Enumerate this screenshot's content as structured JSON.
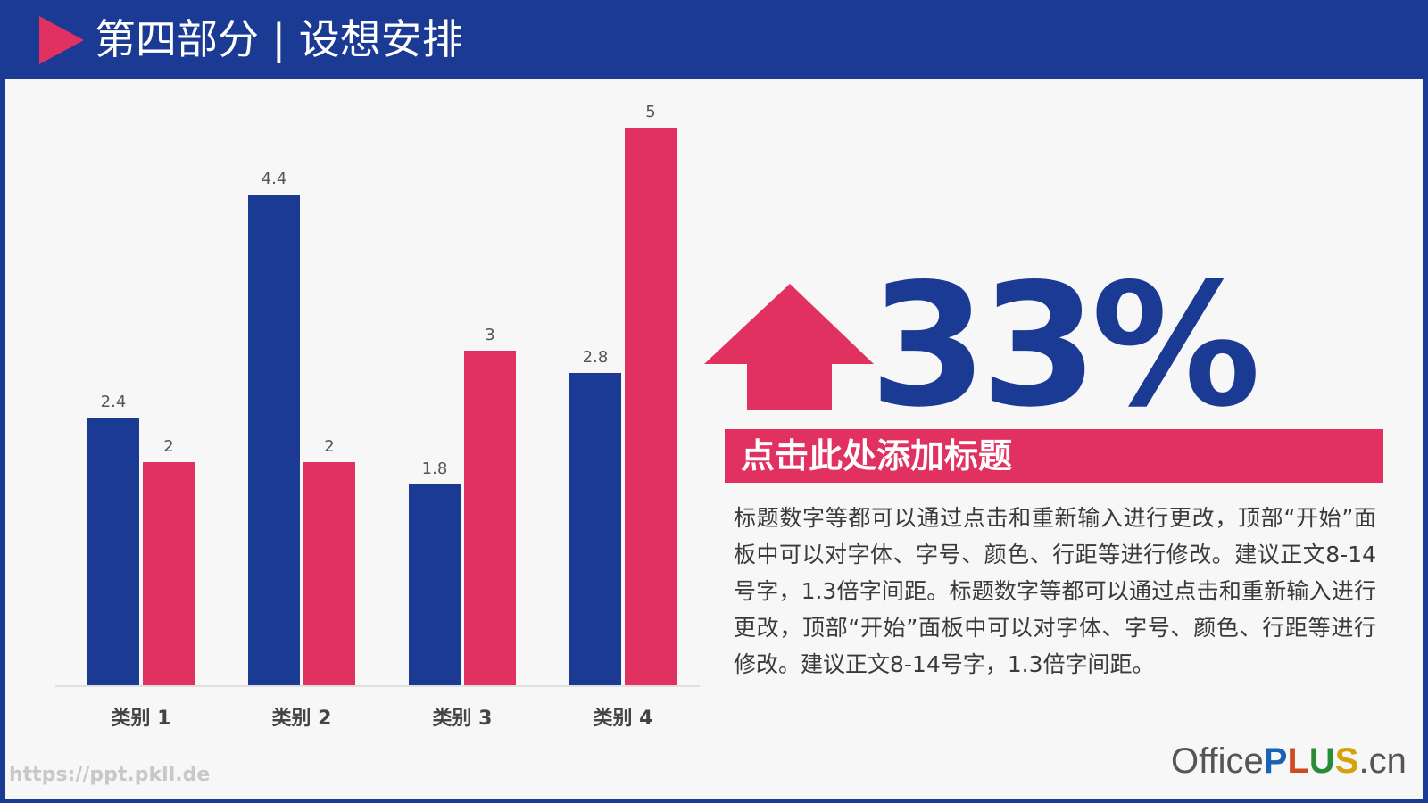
{
  "header": {
    "title": "第四部分 | 设想安排"
  },
  "colors": {
    "series_a": "#1b3a94",
    "series_b": "#e03161",
    "header_bg": "#1b3a94",
    "accent": "#e03161"
  },
  "chart_data": {
    "type": "bar",
    "categories": [
      "类别 1",
      "类别 2",
      "类别 3",
      "类别 4"
    ],
    "series": [
      {
        "values": [
          2.4,
          4.4,
          1.8,
          2.8
        ]
      },
      {
        "values": [
          2,
          2,
          3,
          5
        ]
      }
    ],
    "ylim": [
      0,
      5
    ],
    "grid": false,
    "legend": "none",
    "data_labels": true
  },
  "highlight": {
    "percent": "33%",
    "icon": "up-arrow-icon"
  },
  "banner": {
    "title": "点击此处添加标题"
  },
  "body": {
    "text": "标题数字等都可以通过点击和重新输入进行更改，顶部“开始”面板中可以对字体、字号、颜色、行距等进行修改。建议正文8-14号字，1.3倍字间距。标题数字等都可以通过点击和重新输入进行更改，顶部“开始”面板中可以对字体、字号、颜色、行距等进行修改。建议正文8-14号字，1.3倍字间距。"
  },
  "watermark": "https://ppt.pkll.de",
  "brand": {
    "part1": "Office",
    "p": "P",
    "l": "L",
    "u": "U",
    "s": "S",
    "suffix": ".cn"
  }
}
